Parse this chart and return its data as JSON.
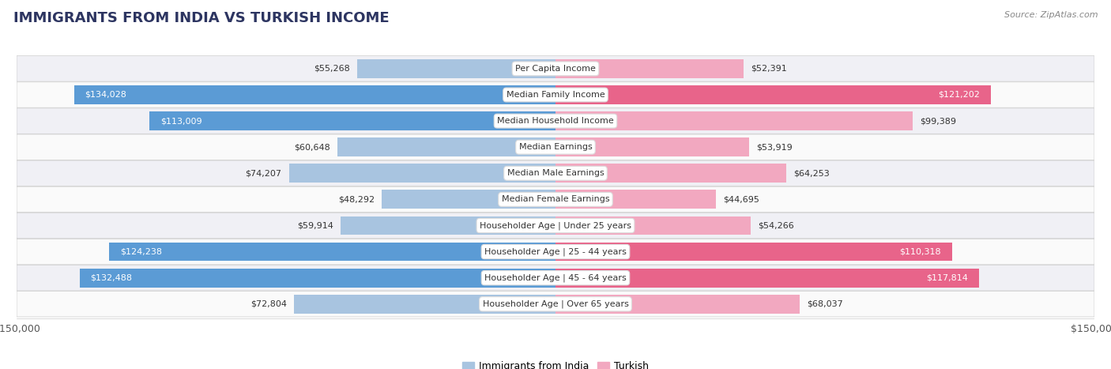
{
  "title": "IMMIGRANTS FROM INDIA VS TURKISH INCOME",
  "source": "Source: ZipAtlas.com",
  "categories": [
    "Per Capita Income",
    "Median Family Income",
    "Median Household Income",
    "Median Earnings",
    "Median Male Earnings",
    "Median Female Earnings",
    "Householder Age | Under 25 years",
    "Householder Age | 25 - 44 years",
    "Householder Age | 45 - 64 years",
    "Householder Age | Over 65 years"
  ],
  "india_values": [
    55268,
    134028,
    113009,
    60648,
    74207,
    48292,
    59914,
    124238,
    132488,
    72804
  ],
  "turkish_values": [
    52391,
    121202,
    99389,
    53919,
    64253,
    44695,
    54266,
    110318,
    117814,
    68037
  ],
  "india_labels": [
    "$55,268",
    "$134,028",
    "$113,009",
    "$60,648",
    "$74,207",
    "$48,292",
    "$59,914",
    "$124,238",
    "$132,488",
    "$72,804"
  ],
  "turkish_labels": [
    "$52,391",
    "$121,202",
    "$99,389",
    "$53,919",
    "$64,253",
    "$44,695",
    "$54,266",
    "$110,318",
    "$117,814",
    "$68,037"
  ],
  "india_color_light": "#a8c4e0",
  "india_color_dark": "#5b9bd5",
  "turkish_color_light": "#f2a8c0",
  "turkish_color_dark": "#e8648a",
  "max_value": 150000,
  "legend_india": "Immigrants from India",
  "legend_turkish": "Turkish",
  "background_color": "#ffffff",
  "row_bg_even": "#f0f0f5",
  "row_bg_odd": "#fafafa",
  "threshold": 100000,
  "title_fontsize": 13,
  "label_fontsize": 8,
  "cat_fontsize": 8
}
